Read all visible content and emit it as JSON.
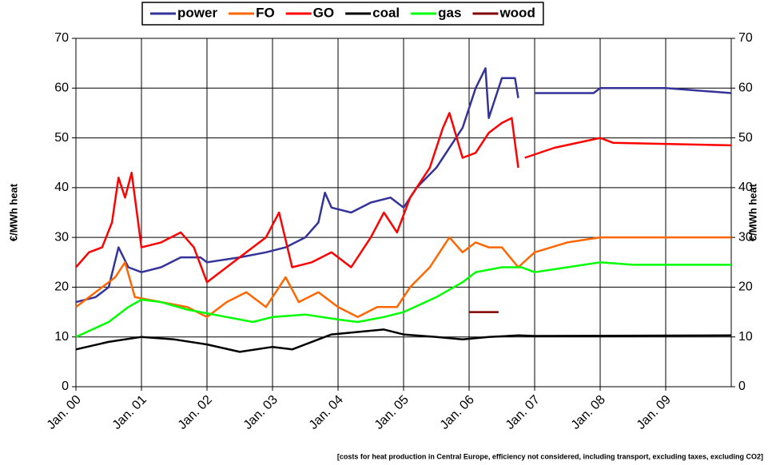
{
  "chart_data": {
    "type": "line",
    "y_label": "€/MWh heat",
    "y2_label": "€/MWh heat",
    "footnote": "[costs for heat production in Central Europe, efficiency not considered, including transport, excluding taxes, excluding CO2]",
    "xlim": [
      2000,
      2010
    ],
    "xticks": [
      {
        "value": 2000,
        "label": "Jan. 00"
      },
      {
        "value": 2001,
        "label": "Jan. 01"
      },
      {
        "value": 2002,
        "label": "Jan. 02"
      },
      {
        "value": 2003,
        "label": "Jan. 03"
      },
      {
        "value": 2004,
        "label": "Jan. 04"
      },
      {
        "value": 2005,
        "label": "Jan. 05"
      },
      {
        "value": 2006,
        "label": "Jan. 06"
      },
      {
        "value": 2007,
        "label": "Jan. 07"
      },
      {
        "value": 2008,
        "label": "Jan. 08"
      },
      {
        "value": 2009,
        "label": "Jan. 09"
      }
    ],
    "ylim": [
      0,
      70
    ],
    "yticks": [
      0,
      10,
      20,
      30,
      40,
      50,
      60,
      70
    ],
    "y2lim": [
      0,
      70
    ],
    "y2ticks": [
      0,
      10,
      20,
      30,
      40,
      50,
      60,
      70
    ],
    "grid": true,
    "legend": "top",
    "series": [
      {
        "name": "power",
        "color": "#333399",
        "x": [
          2000,
          2000.3,
          2000.5,
          2000.65,
          2000.8,
          2001,
          2001.3,
          2001.6,
          2001.9,
          2002,
          2002.5,
          2002.9,
          2003.2,
          2003.5,
          2003.7,
          2003.8,
          2003.9,
          2004.2,
          2004.5,
          2004.8,
          2005,
          2005.2,
          2005.5,
          2005.7,
          2005.9,
          2006,
          2006.1,
          2006.25,
          2006.3,
          2006.5,
          2006.7,
          2006.75,
          2006.9,
          2007,
          2007.9,
          2008,
          2009,
          2010
        ],
        "values": [
          17,
          18,
          20,
          28,
          24,
          23,
          24,
          26,
          26,
          25,
          26,
          27,
          28,
          30,
          33,
          39,
          36,
          35,
          37,
          38,
          36,
          40,
          44,
          48,
          52,
          56,
          60,
          64,
          54,
          62,
          62,
          58,
          null,
          59,
          59,
          60,
          60,
          59
        ]
      },
      {
        "name": "FO",
        "color": "#ff6600",
        "x": [
          2000,
          2000.3,
          2000.6,
          2000.75,
          2000.9,
          2001.3,
          2001.7,
          2002,
          2002.3,
          2002.6,
          2002.9,
          2003.2,
          2003.4,
          2003.7,
          2004,
          2004.3,
          2004.6,
          2004.9,
          2005.1,
          2005.4,
          2005.7,
          2005.9,
          2006.1,
          2006.3,
          2006.5,
          2006.75,
          2007,
          2007.5,
          2008,
          2010
        ],
        "values": [
          16,
          19,
          22,
          25,
          18,
          17,
          16,
          14,
          17,
          19,
          16,
          22,
          17,
          19,
          16,
          14,
          16,
          16,
          20,
          24,
          30,
          27,
          29,
          28,
          28,
          24,
          27,
          29,
          30,
          30
        ]
      },
      {
        "name": "GO",
        "color": "#ff0000",
        "x": [
          2000,
          2000.2,
          2000.4,
          2000.55,
          2000.65,
          2000.75,
          2000.85,
          2001,
          2001.3,
          2001.6,
          2001.8,
          2002,
          2002.3,
          2002.6,
          2002.9,
          2003.1,
          2003.3,
          2003.6,
          2003.9,
          2004.2,
          2004.5,
          2004.7,
          2004.9,
          2005.1,
          2005.4,
          2005.6,
          2005.7,
          2005.9,
          2006.1,
          2006.3,
          2006.5,
          2006.65,
          2006.75,
          2006.8,
          2006.85,
          2007.3,
          2008,
          2008.2,
          2010
        ],
        "values": [
          24,
          27,
          28,
          33,
          42,
          38,
          43,
          28,
          29,
          31,
          28,
          21,
          24,
          27,
          30,
          35,
          24,
          25,
          27,
          24,
          30,
          35,
          31,
          38,
          44,
          52,
          55,
          46,
          47,
          51,
          53,
          54,
          44,
          null,
          46,
          48,
          50,
          49,
          48.5
        ]
      },
      {
        "name": "coal",
        "color": "#000000",
        "x": [
          2000,
          2000.5,
          2001,
          2001.5,
          2002,
          2002.5,
          2003,
          2003.3,
          2003.6,
          2003.9,
          2004.3,
          2004.7,
          2005,
          2005.5,
          2005.9,
          2006.3,
          2006.75,
          2007,
          2010
        ],
        "values": [
          7.5,
          9,
          10,
          9.5,
          8.5,
          7,
          8,
          7.5,
          9,
          10.5,
          11,
          11.5,
          10.5,
          10,
          9.5,
          10,
          10.3,
          10.2,
          10.3
        ]
      },
      {
        "name": "gas",
        "color": "#00ff00",
        "x": [
          2000,
          2000.5,
          2000.8,
          2001,
          2001.3,
          2001.7,
          2002.3,
          2002.7,
          2003,
          2003.5,
          2004,
          2004.3,
          2004.7,
          2005,
          2005.5,
          2005.9,
          2006.1,
          2006.5,
          2006.8,
          2007,
          2007.5,
          2008,
          2008.5,
          2010
        ],
        "values": [
          10,
          13,
          16,
          17.5,
          17,
          15.5,
          14,
          13,
          14,
          14.5,
          13.5,
          13,
          14,
          15,
          18,
          21,
          23,
          24,
          24,
          23,
          24,
          25,
          24.5,
          24.5
        ]
      },
      {
        "name": "wood",
        "color": "#800000",
        "x": [
          2006,
          2006.45
        ],
        "values": [
          15,
          15
        ]
      }
    ]
  }
}
